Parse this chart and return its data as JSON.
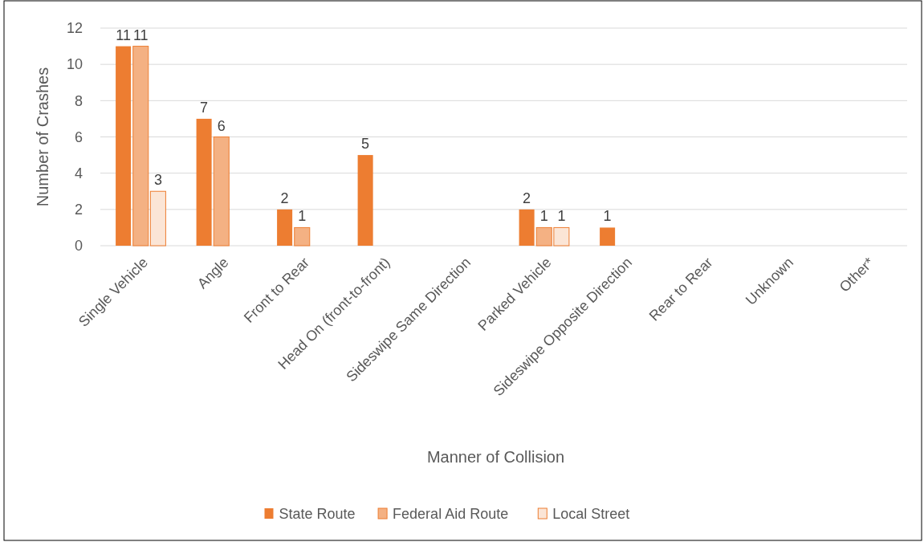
{
  "chart_data": {
    "type": "bar",
    "xlabel": "Manner of Collision",
    "ylabel": "Number of Crashes",
    "categories": [
      "Single Vehicle",
      "Angle",
      "Front to Rear",
      "Head On (front-to-front)",
      "Sideswipe Same Direction",
      "Parked Vehicle",
      "Sideswipe Opposite Direction",
      "Rear to Rear",
      "Unknown",
      "Other*"
    ],
    "series": [
      {
        "name": "State Route",
        "color": "#ed7d31",
        "values": [
          11,
          7,
          2,
          5,
          0,
          2,
          1,
          0,
          0,
          0
        ],
        "value_labels": [
          "11",
          "7",
          "2",
          "5",
          null,
          "2",
          "1",
          null,
          null,
          null
        ]
      },
      {
        "name": "Federal Aid Route",
        "color": "#f4b183",
        "values": [
          11,
          6,
          1,
          0,
          0,
          1,
          0,
          0,
          0,
          0
        ],
        "value_labels": [
          "11",
          "6",
          "1",
          null,
          null,
          "1",
          null,
          null,
          null,
          null
        ]
      },
      {
        "name": "Local Street",
        "color": "#fbe5d6",
        "values": [
          3,
          0,
          0,
          0,
          0,
          1,
          0,
          0,
          0,
          0
        ],
        "value_labels": [
          "3",
          null,
          null,
          null,
          null,
          "1",
          null,
          null,
          null,
          null
        ]
      }
    ],
    "ylim": [
      0,
      12
    ],
    "yticks": [
      0,
      2,
      4,
      6,
      8,
      10,
      12
    ],
    "grid": "y",
    "legend": "bottom"
  }
}
